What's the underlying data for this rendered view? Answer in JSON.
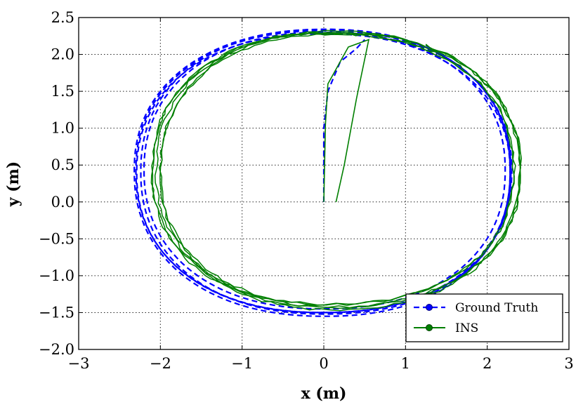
{
  "chart_data": {
    "type": "line",
    "xlabel": "x (m)",
    "ylabel": "y (m)",
    "xlim": [
      -3,
      3
    ],
    "ylim": [
      -2.0,
      2.5
    ],
    "xticks": [
      "−3",
      "−2",
      "−1",
      "0",
      "1",
      "2",
      "3"
    ],
    "yticks": [
      "−2.0",
      "−1.5",
      "−1.0",
      "−0.5",
      "0.0",
      "0.5",
      "1.0",
      "1.5",
      "2.0",
      "2.5"
    ],
    "xtick_values": [
      -3,
      -2,
      -1,
      0,
      1,
      2,
      3
    ],
    "ytick_values": [
      -2.0,
      -1.5,
      -1.0,
      -0.5,
      0.0,
      0.5,
      1.0,
      1.5,
      2.0,
      2.5
    ],
    "grid": true,
    "legend_position": "bottom-right",
    "series": [
      {
        "name": "Ground Truth",
        "color": "#0000ff",
        "style": "dashed",
        "marker": "circle",
        "start": [
          [
            0.0,
            0.0
          ],
          [
            0.0,
            1.0
          ],
          [
            0.05,
            1.5
          ],
          [
            0.2,
            1.9
          ],
          [
            0.4,
            2.08
          ],
          [
            0.5,
            2.2
          ]
        ],
        "loops": [
          {
            "cx": 0.0,
            "cy": 0.42,
            "rx_right": 2.3,
            "rx_left": 2.3,
            "ry_top": 1.9,
            "ry_bottom": 1.92
          },
          {
            "cx": 0.02,
            "cy": 0.42,
            "rx_right": 2.26,
            "rx_left": 2.34,
            "ry_top": 1.92,
            "ry_bottom": 1.97
          },
          {
            "cx": -0.02,
            "cy": 0.4,
            "rx_right": 2.3,
            "rx_left": 2.27,
            "ry_top": 1.88,
            "ry_bottom": 1.9
          },
          {
            "cx": 0.0,
            "cy": 0.43,
            "rx_right": 2.22,
            "rx_left": 2.2,
            "ry_top": 1.87,
            "ry_bottom": 1.88
          },
          {
            "cx": 0.01,
            "cy": 0.41,
            "rx_right": 2.28,
            "rx_left": 2.25,
            "ry_top": 1.93,
            "ry_bottom": 1.93
          }
        ]
      },
      {
        "name": "INS",
        "color": "#007f00",
        "style": "solid",
        "marker": "circle",
        "start": [
          [
            0.0,
            0.0
          ],
          [
            0.02,
            1.05
          ],
          [
            0.05,
            1.6
          ],
          [
            0.3,
            2.1
          ],
          [
            0.55,
            2.2
          ],
          [
            0.4,
            1.4
          ],
          [
            0.25,
            0.5
          ],
          [
            0.15,
            0.0
          ]
        ],
        "loops": [
          {
            "cx": 0.1,
            "cy": 0.42,
            "rx_right": 2.3,
            "rx_left": 2.2,
            "ry_top": 1.88,
            "ry_bottom": 1.85
          },
          {
            "cx": 0.12,
            "cy": 0.4,
            "rx_right": 2.28,
            "rx_left": 2.12,
            "ry_top": 1.9,
            "ry_bottom": 1.86
          },
          {
            "cx": 0.08,
            "cy": 0.43,
            "rx_right": 2.25,
            "rx_left": 2.18,
            "ry_top": 1.85,
            "ry_bottom": 1.82
          },
          {
            "cx": 0.1,
            "cy": 0.41,
            "rx_right": 2.22,
            "rx_left": 2.1,
            "ry_top": 1.86,
            "ry_bottom": 1.8
          },
          {
            "cx": 0.11,
            "cy": 0.42,
            "rx_right": 2.3,
            "rx_left": 2.16,
            "ry_top": 1.89,
            "ry_bottom": 1.84
          }
        ]
      }
    ]
  }
}
